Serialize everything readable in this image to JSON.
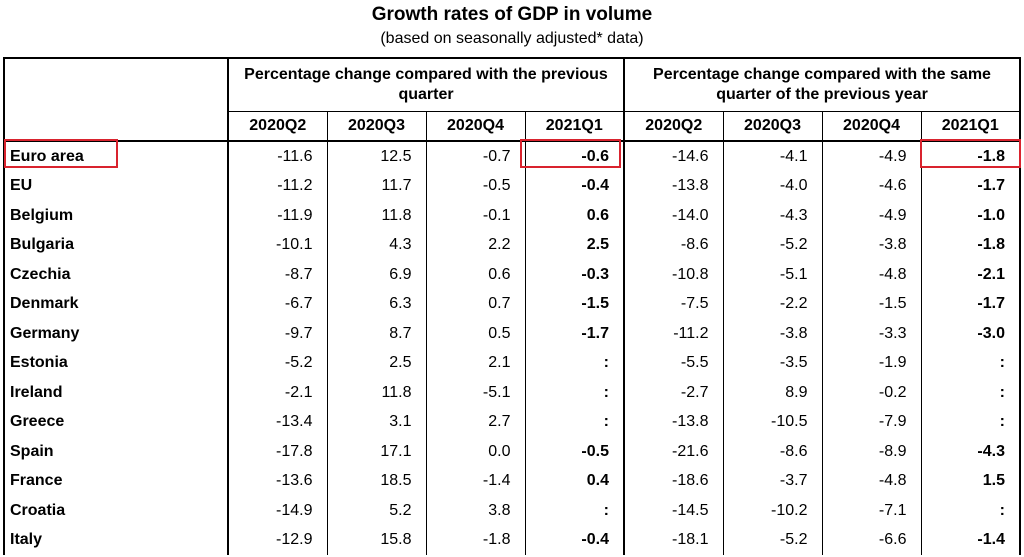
{
  "title": "Growth rates of GDP in volume",
  "subtitle": "(based on seasonally adjusted* data)",
  "table": {
    "group_headers": [
      "Percentage change compared with the previous quarter",
      "Percentage change compared with the same quarter of the previous year"
    ],
    "quarters_prev_quarter": [
      "2020Q2",
      "2020Q3",
      "2020Q4",
      "2021Q1"
    ],
    "quarters_prev_year": [
      "2020Q2",
      "2020Q3",
      "2020Q4",
      "2021Q1"
    ],
    "rows": [
      {
        "country": "Euro area",
        "qoq": [
          "-11.6",
          "12.5",
          "-0.7",
          "-0.6"
        ],
        "yoy": [
          "-14.6",
          "-4.1",
          "-4.9",
          "-1.8"
        ]
      },
      {
        "country": "EU",
        "qoq": [
          "-11.2",
          "11.7",
          "-0.5",
          "-0.4"
        ],
        "yoy": [
          "-13.8",
          "-4.0",
          "-4.6",
          "-1.7"
        ]
      },
      {
        "country": "Belgium",
        "qoq": [
          "-11.9",
          "11.8",
          "-0.1",
          "0.6"
        ],
        "yoy": [
          "-14.0",
          "-4.3",
          "-4.9",
          "-1.0"
        ]
      },
      {
        "country": "Bulgaria",
        "qoq": [
          "-10.1",
          "4.3",
          "2.2",
          "2.5"
        ],
        "yoy": [
          "-8.6",
          "-5.2",
          "-3.8",
          "-1.8"
        ]
      },
      {
        "country": "Czechia",
        "qoq": [
          "-8.7",
          "6.9",
          "0.6",
          "-0.3"
        ],
        "yoy": [
          "-10.8",
          "-5.1",
          "-4.8",
          "-2.1"
        ]
      },
      {
        "country": "Denmark",
        "qoq": [
          "-6.7",
          "6.3",
          "0.7",
          "-1.5"
        ],
        "yoy": [
          "-7.5",
          "-2.2",
          "-1.5",
          "-1.7"
        ]
      },
      {
        "country": "Germany",
        "qoq": [
          "-9.7",
          "8.7",
          "0.5",
          "-1.7"
        ],
        "yoy": [
          "-11.2",
          "-3.8",
          "-3.3",
          "-3.0"
        ]
      },
      {
        "country": "Estonia",
        "qoq": [
          "-5.2",
          "2.5",
          "2.1",
          ":"
        ],
        "yoy": [
          "-5.5",
          "-3.5",
          "-1.9",
          ":"
        ]
      },
      {
        "country": "Ireland",
        "qoq": [
          "-2.1",
          "11.8",
          "-5.1",
          ":"
        ],
        "yoy": [
          "-2.7",
          "8.9",
          "-0.2",
          ":"
        ]
      },
      {
        "country": "Greece",
        "qoq": [
          "-13.4",
          "3.1",
          "2.7",
          ":"
        ],
        "yoy": [
          "-13.8",
          "-10.5",
          "-7.9",
          ":"
        ]
      },
      {
        "country": "Spain",
        "qoq": [
          "-17.8",
          "17.1",
          "0.0",
          "-0.5"
        ],
        "yoy": [
          "-21.6",
          "-8.6",
          "-8.9",
          "-4.3"
        ]
      },
      {
        "country": "France",
        "qoq": [
          "-13.6",
          "18.5",
          "-1.4",
          "0.4"
        ],
        "yoy": [
          "-18.6",
          "-3.7",
          "-4.8",
          "1.5"
        ]
      },
      {
        "country": "Croatia",
        "qoq": [
          "-14.9",
          "5.2",
          "3.8",
          ":"
        ],
        "yoy": [
          "-14.5",
          "-10.2",
          "-7.1",
          ":"
        ]
      },
      {
        "country": "Italy",
        "qoq": [
          "-12.9",
          "15.8",
          "-1.8",
          "-0.4"
        ],
        "yoy": [
          "-18.1",
          "-5.2",
          "-6.6",
          "-1.4"
        ]
      }
    ]
  },
  "highlight_color": "#d9232e"
}
